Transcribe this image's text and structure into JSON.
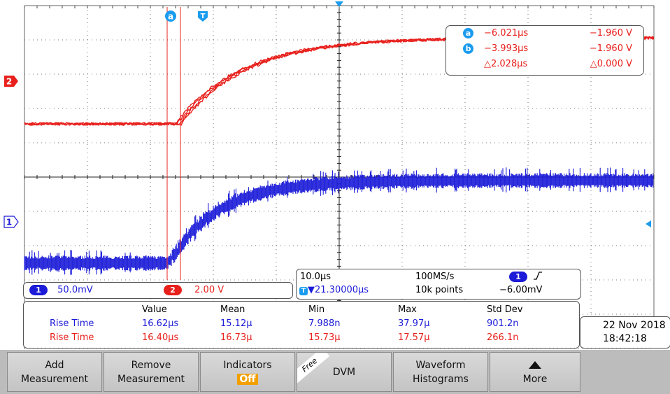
{
  "colors": {
    "ch1": "#1b1bd8",
    "ch2": "#e8201c",
    "cursor": "#e8201c",
    "badge": "#1a9bef",
    "accent": "#f2a000"
  },
  "markers": {
    "cursor_a": "a",
    "trigger": "T",
    "ch2_marker": "2",
    "ch1_marker": "1"
  },
  "cursor_readout": {
    "a_label": "a",
    "a_time": "−6.021μs",
    "a_volt": "−1.960 V",
    "b_label": "b",
    "b_time": "−3.993μs",
    "b_volt": "−1.960 V",
    "delta_time": "△2.028μs",
    "delta_volt": "△0.000 V"
  },
  "channels": {
    "ch1": {
      "num": "1",
      "scale": "50.0mV"
    },
    "ch2": {
      "num": "2",
      "scale": "2.00 V"
    }
  },
  "timebase": {
    "scale": "10.0μs",
    "sample_rate": "100MS/s",
    "trigger_ch": "1",
    "trigger_position": "▼21.30000μs",
    "record_length": "10k points",
    "trigger_level": "−6.00mV"
  },
  "measurements": {
    "headers": [
      "Value",
      "Mean",
      "Min",
      "Max",
      "Std Dev"
    ],
    "rows": [
      {
        "ch": "1",
        "name": "Rise Time",
        "value": "16.62μs",
        "mean": "15.12μ",
        "min": "7.988n",
        "max": "37.97μ",
        "std": "901.2n"
      },
      {
        "ch": "2",
        "name": "Rise Time",
        "value": "16.40μs",
        "mean": "16.73μ",
        "min": "15.73μ",
        "max": "17.57μ",
        "std": "266.1n"
      }
    ]
  },
  "datetime": {
    "date": "22 Nov 2018",
    "time": "18:42:18"
  },
  "softkeys": {
    "add": {
      "l1": "Add",
      "l2": "Measurement"
    },
    "remove": {
      "l1": "Remove",
      "l2": "Measurement"
    },
    "indicators": {
      "l1": "Indicators",
      "l2": "Off"
    },
    "dvm": {
      "tag": "Free",
      "l1": "DVM"
    },
    "histograms": {
      "l1": "Waveform",
      "l2": "Histograms"
    },
    "more": {
      "l1": "More"
    }
  }
}
